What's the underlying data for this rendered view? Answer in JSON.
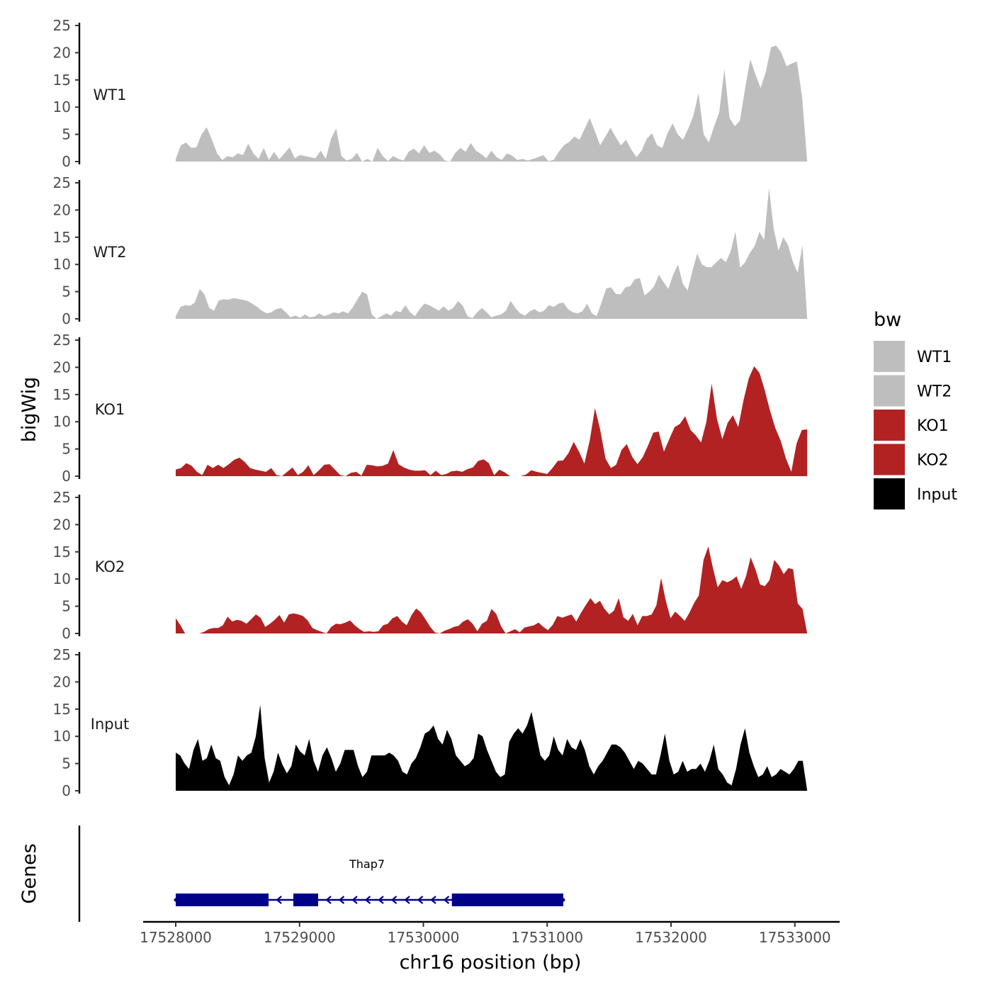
{
  "chart_data": {
    "type": "area",
    "region": {
      "chrom": "chr16",
      "start": 17528000,
      "end": 17533100
    },
    "xlabel": "chr16 position (bp)",
    "ylabel": "bigWig",
    "genes_label": "Genes",
    "x_ticks": [
      17528000,
      17529000,
      17530000,
      17531000,
      17532000,
      17533000
    ],
    "x_tick_labels": [
      "17528000",
      "17529000",
      "17530000",
      "17531000",
      "17532000",
      "17533000"
    ],
    "ylim": [
      0,
      25
    ],
    "y_ticks": [
      0,
      5,
      10,
      15,
      20,
      25
    ],
    "y_tick_labels": [
      "0",
      "5",
      "10",
      "15",
      "20",
      "25"
    ],
    "grid": false,
    "legend": {
      "title": "bw",
      "placement": "right",
      "entries": [
        {
          "label": "WT1",
          "color": "#bebebe"
        },
        {
          "label": "WT2",
          "color": "#bebebe"
        },
        {
          "label": "KO1",
          "color": "#b22222"
        },
        {
          "label": "KO2",
          "color": "#b22222"
        },
        {
          "label": "Input",
          "color": "#000000"
        }
      ]
    },
    "series": [
      {
        "name": "WT1",
        "color": "#bebebe",
        "x_start": 17528000,
        "x_end": 17533100,
        "values": [
          0.5,
          3,
          3.5,
          2.5,
          2.6,
          5,
          6.3,
          4,
          1.5,
          0.3,
          1,
          0.8,
          1.5,
          1.2,
          3.3,
          1.5,
          0.5,
          2.5,
          0.3,
          1.8,
          0.4,
          1.5,
          2.6,
          0.6,
          1.2,
          1,
          0.8,
          0.6,
          2,
          0.5,
          4.2,
          6.1,
          1,
          0.2,
          0.5,
          1.6,
          0,
          0.5,
          0,
          2.5,
          1,
          0.1,
          1,
          0.5,
          0.2,
          1.8,
          2.4,
          1.5,
          3,
          1.6,
          2,
          1.3,
          0.2,
          0,
          1.6,
          2.5,
          1.8,
          3.4,
          2,
          1.4,
          0.6,
          2,
          0.8,
          0.3,
          1.5,
          1.1,
          0.3,
          0.5,
          0.2,
          0.5,
          0.8,
          1.2,
          0.1,
          0.3,
          1.8,
          3,
          3.6,
          4.6,
          4,
          6,
          8,
          5.5,
          3,
          4.6,
          6.2,
          4.5,
          3,
          4,
          2.2,
          0.8,
          2,
          4.2,
          5.2,
          3,
          2.5,
          5.2,
          7,
          5,
          4,
          6,
          8.4,
          12.6,
          5,
          3.5,
          6.4,
          9,
          17,
          8,
          6.5,
          7.5,
          13.5,
          18.8,
          16,
          13.5,
          16.5,
          21,
          21.3,
          20,
          17.5,
          18,
          18.4,
          12,
          0
        ]
      },
      {
        "name": "WT2",
        "color": "#bebebe",
        "x_start": 17528000,
        "x_end": 17533100,
        "values": [
          0.5,
          2.2,
          2.5,
          2.4,
          3,
          5.5,
          4.5,
          2,
          1.5,
          3.4,
          3.6,
          3.5,
          3.8,
          3.7,
          3.5,
          3.3,
          2.8,
          2.2,
          1.5,
          1,
          1.2,
          1.8,
          2,
          1.2,
          0.3,
          0.6,
          0.2,
          0.8,
          0.3,
          0.4,
          1,
          0.5,
          0.8,
          1.2,
          1,
          1.4,
          1,
          2.1,
          3.6,
          5,
          4.5,
          0.8,
          0,
          0.5,
          1,
          0.6,
          1.5,
          1.2,
          2.5,
          1.2,
          0.5,
          1.8,
          2.8,
          2.5,
          2,
          1.5,
          2.3,
          1.5,
          2,
          3.3,
          2.4,
          0.5,
          0.1,
          1.2,
          2,
          1.2,
          0.3,
          0.6,
          0.8,
          1.5,
          3.3,
          2,
          1,
          0.6,
          1.4,
          1.8,
          1.2,
          1.5,
          2.5,
          2.2,
          2.8,
          3,
          1.8,
          1.2,
          1,
          1.4,
          2.8,
          1,
          0.5,
          3,
          5.6,
          5.8,
          4.6,
          4.5,
          5.8,
          6,
          7.3,
          7.5,
          4.3,
          5,
          6,
          8.1,
          6.7,
          5.5,
          8.2,
          10,
          6.4,
          5.2,
          8.8,
          12,
          10,
          9.5,
          9.5,
          10.4,
          11.2,
          10.4,
          12.4,
          16,
          9.4,
          10.4,
          12.1,
          13.4,
          16,
          14.5,
          24,
          16.5,
          12.5,
          15,
          13.5,
          10.5,
          8.5,
          13.5,
          0
        ]
      },
      {
        "name": "KO1",
        "color": "#b22222",
        "x_start": 17528000,
        "x_end": 17533100,
        "values": [
          1.2,
          1.5,
          2.4,
          1.9,
          0.8,
          0.2,
          2.1,
          1.5,
          2.1,
          1.5,
          2.2,
          3,
          3.4,
          2.6,
          1.5,
          1.2,
          1,
          0.8,
          1.5,
          0.2,
          0,
          0.8,
          1.6,
          0.2,
          0.8,
          2,
          0.2,
          1.1,
          2.1,
          2.2,
          1.2,
          0.2,
          0,
          0.6,
          0.8,
          0.1,
          2.1,
          2,
          1.8,
          1.9,
          2.3,
          4.8,
          2.2,
          1.6,
          1.2,
          1,
          1,
          1.1,
          0.2,
          1,
          0.2,
          0.4,
          0.9,
          1,
          0.8,
          1.3,
          1.6,
          2.8,
          3.1,
          2.4,
          0.2,
          1.2,
          0.7,
          0,
          0,
          0,
          0.3,
          1.1,
          0.8,
          0.6,
          0.4,
          1.5,
          2.8,
          2.9,
          4.2,
          6.3,
          4.5,
          2.3,
          6.5,
          12.5,
          8.5,
          3.2,
          1.5,
          2.1,
          4.8,
          5.9,
          3.6,
          2.2,
          3.5,
          5.6,
          8,
          8.2,
          4.5,
          6.8,
          9,
          9.6,
          11,
          8.5,
          7.5,
          6.2,
          10,
          17,
          10.5,
          6.8,
          9.8,
          11.2,
          9,
          14,
          18,
          20.2,
          19,
          15.8,
          12,
          8.8,
          6.5,
          3.2,
          0.8,
          6,
          8.5,
          8.6
        ]
      },
      {
        "name": "KO2",
        "color": "#b22222",
        "x_start": 17528000,
        "x_end": 17533100,
        "values": [
          2.8,
          1.5,
          0,
          0,
          0,
          0,
          0.3,
          0.8,
          1,
          1,
          1.5,
          3.1,
          2.2,
          2.5,
          2.3,
          1.8,
          2.6,
          3.5,
          2.9,
          1.2,
          1.8,
          2.5,
          3.4,
          2,
          3.5,
          3.7,
          3.5,
          3.2,
          2.4,
          1,
          0.6,
          0.3,
          0,
          1.2,
          1.8,
          1.7,
          2,
          2.4,
          1.5,
          0.8,
          0.3,
          0.4,
          0.3,
          0.4,
          1.5,
          1.8,
          2.8,
          3.2,
          2.2,
          1.5,
          3.3,
          4.6,
          3.9,
          2.6,
          1.2,
          0.2,
          0,
          0.5,
          0.8,
          1.2,
          1.4,
          2.2,
          2.6,
          1.8,
          0.4,
          1.8,
          2.3,
          4.5,
          3.6,
          1.4,
          0,
          0.4,
          0.8,
          0.2,
          1.1,
          1.3,
          1.5,
          2,
          1.2,
          0.6,
          1.6,
          3.2,
          2.9,
          3.2,
          3.5,
          2.2,
          3.8,
          5.2,
          6.5,
          5.4,
          6,
          4.5,
          3.5,
          4.2,
          6.5,
          3,
          2.3,
          3.6,
          1.5,
          3.2,
          3.2,
          3.5,
          5.2,
          10.2,
          6,
          2.8,
          4,
          3.2,
          2.3,
          3.8,
          5.6,
          7,
          13.5,
          16,
          12,
          8.5,
          9.8,
          9.4,
          9.8,
          10.5,
          8.2,
          10.5,
          14,
          11.8,
          9,
          8.7,
          9.8,
          13.5,
          12.5,
          10.9,
          12,
          11.8,
          5.5,
          4.5,
          0
        ]
      },
      {
        "name": "Input",
        "color": "#000000",
        "x_start": 17528000,
        "x_end": 17533100,
        "values": [
          7,
          6.5,
          5,
          4,
          7.5,
          9.5,
          5.5,
          6,
          8.5,
          6,
          5.5,
          2.5,
          1,
          3,
          6.5,
          5.5,
          6.5,
          7,
          10,
          15.8,
          6,
          1.5,
          3.5,
          7,
          4.8,
          3.2,
          4.5,
          8.5,
          7.2,
          6.5,
          9.5,
          5.5,
          3.5,
          6.5,
          8,
          6,
          3.5,
          5,
          7.5,
          7.5,
          7.5,
          4.5,
          2.5,
          3.5,
          6.5,
          6.5,
          6.5,
          6.5,
          7,
          6.5,
          5.5,
          3.5,
          3,
          5,
          6,
          8,
          10.5,
          11,
          12,
          9.5,
          8.5,
          11.2,
          9.5,
          6.5,
          5.5,
          4.5,
          5,
          6,
          10.5,
          10,
          7.5,
          5.5,
          3.5,
          2.5,
          3,
          9,
          10.5,
          11.5,
          10.5,
          12,
          14.5,
          10.5,
          6.5,
          5.5,
          6.5,
          10,
          7.5,
          6.5,
          9.5,
          8,
          7.5,
          9.5,
          7.5,
          4.5,
          3,
          4.5,
          5.5,
          7,
          8.5,
          8.5,
          8,
          7,
          5.5,
          4,
          5.5,
          5,
          4,
          3,
          3,
          6.5,
          10.5,
          5.5,
          3,
          3.5,
          5.5,
          3.5,
          4,
          4,
          5,
          3.5,
          5.5,
          8.5,
          4,
          3,
          1.5,
          1,
          4,
          8.5,
          11.5,
          7,
          4.5,
          2.5,
          3,
          4.5,
          2.5,
          3,
          4,
          3.5,
          3,
          4,
          5.5,
          5.5,
          0
        ]
      }
    ],
    "genes": [
      {
        "name": "Thap7",
        "strand": "-",
        "start": 17528000,
        "end": 17531130,
        "color": "#00008b",
        "exons": [
          {
            "start": 17528000,
            "end": 17528750
          },
          {
            "start": 17528950,
            "end": 17529150
          },
          {
            "start": 17530230,
            "end": 17531130
          }
        ]
      }
    ]
  }
}
